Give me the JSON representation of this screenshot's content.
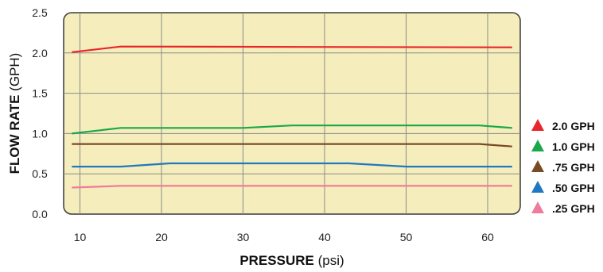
{
  "chart_data": {
    "type": "line",
    "title": "",
    "xlabel": {
      "bold": "PRESSURE",
      "unit": "(psi)"
    },
    "ylabel": {
      "bold": "FLOW RATE",
      "unit": "(GPH)"
    },
    "xlim": [
      8,
      64
    ],
    "ylim": [
      0,
      2.5
    ],
    "xticks": [
      "10",
      "20",
      "30",
      "40",
      "50",
      "60"
    ],
    "yticks": [
      "0.0",
      "0.5",
      "1.0",
      "1.5",
      "2.0",
      "2.5"
    ],
    "grid": true,
    "legend_position": "right",
    "series": [
      {
        "name": "2.0 GPH",
        "color": "#e8262b",
        "x": [
          9,
          15,
          63
        ],
        "y": [
          2.01,
          2.08,
          2.07
        ]
      },
      {
        "name": "1.0 GPH",
        "color": "#1aa84a",
        "x": [
          9,
          15,
          30,
          36,
          59,
          63
        ],
        "y": [
          1.0,
          1.07,
          1.07,
          1.1,
          1.1,
          1.07
        ]
      },
      {
        "name": ".75 GPH",
        "color": "#7a4b22",
        "x": [
          9,
          59,
          63
        ],
        "y": [
          0.87,
          0.87,
          0.84
        ]
      },
      {
        "name": ".50 GPH",
        "color": "#1f78c1",
        "x": [
          9,
          15,
          21,
          43,
          50,
          63
        ],
        "y": [
          0.59,
          0.59,
          0.63,
          0.63,
          0.59,
          0.59
        ]
      },
      {
        "name": ".25 GPH",
        "color": "#f07c9c",
        "x": [
          9,
          15,
          63
        ],
        "y": [
          0.33,
          0.35,
          0.35
        ]
      }
    ]
  }
}
